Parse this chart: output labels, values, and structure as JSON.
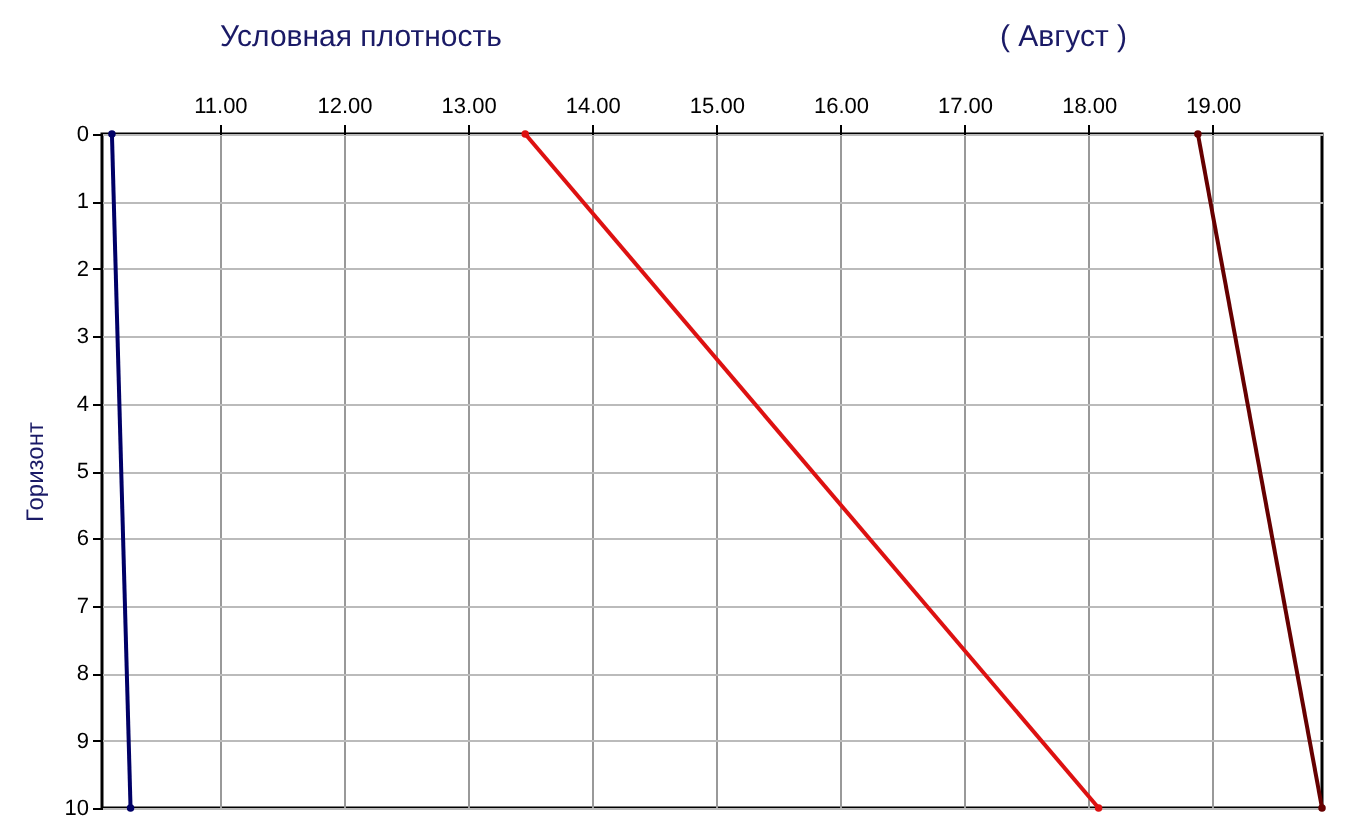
{
  "chart_data": {
    "type": "line",
    "title": "Условная плотность",
    "subtitle": "( Август )",
    "ylabel": "Горизонт",
    "series": [
      {
        "color": "#000066",
        "x": [
          10.13,
          10.28
        ],
        "values": [
          0,
          10
        ]
      },
      {
        "color": "#dd1111",
        "x": [
          13.46,
          18.08
        ],
        "values": [
          0,
          10
        ]
      },
      {
        "color": "#660000",
        "x": [
          18.88,
          19.88
        ],
        "values": [
          0,
          10
        ]
      }
    ],
    "xlim": [
      10.05,
      19.88
    ],
    "xticks": [
      {
        "value": 11,
        "label": "11.00"
      },
      {
        "value": 12,
        "label": "12.00"
      },
      {
        "value": 13,
        "label": "13.00"
      },
      {
        "value": 14,
        "label": "14.00"
      },
      {
        "value": 15,
        "label": "15.00"
      },
      {
        "value": 16,
        "label": "16.00"
      },
      {
        "value": 17,
        "label": "17.00"
      },
      {
        "value": 18,
        "label": "18.00"
      },
      {
        "value": 19,
        "label": "19.00"
      }
    ],
    "ylim": [
      10,
      0
    ],
    "yticks": [
      0,
      1,
      2,
      3,
      4,
      5,
      6,
      7,
      8,
      9,
      10
    ],
    "grid": true,
    "marker": "circle",
    "line_style": "solid"
  }
}
